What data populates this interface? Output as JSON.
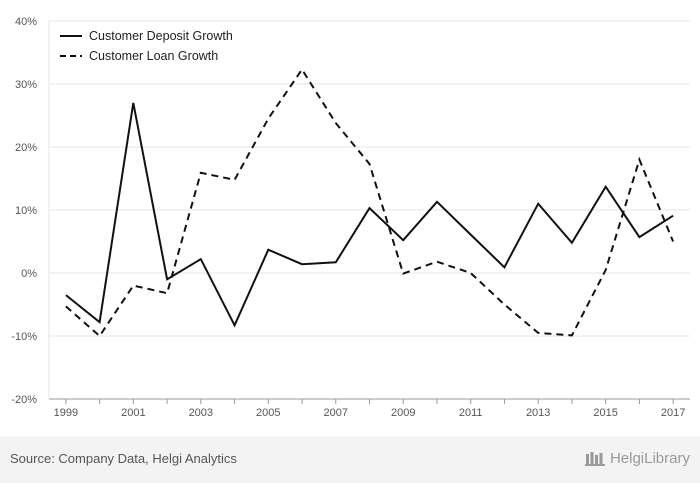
{
  "chart_data": {
    "type": "line",
    "title": "",
    "xlabel": "",
    "ylabel": "",
    "x": [
      1999,
      2000,
      2001,
      2002,
      2003,
      2004,
      2005,
      2006,
      2007,
      2008,
      2009,
      2010,
      2011,
      2012,
      2013,
      2014,
      2015,
      2016,
      2017
    ],
    "x_tick_labels": [
      "1999",
      "2001",
      "2003",
      "2005",
      "2007",
      "2009",
      "2011",
      "2013",
      "2015",
      "2017"
    ],
    "y_tick_labels": [
      "40%",
      "30%",
      "20%",
      "10%",
      "0%",
      "-10%",
      "-20%"
    ],
    "ylim": [
      -20,
      40
    ],
    "grid": true,
    "legend_position": "top-left",
    "series": [
      {
        "name": "Customer Deposit Growth",
        "style": "solid",
        "values": [
          -3.5,
          -7.8,
          27.0,
          -1.0,
          2.2,
          -8.3,
          3.7,
          1.4,
          1.7,
          10.3,
          5.2,
          11.3,
          6.1,
          0.9,
          11.0,
          4.8,
          13.7,
          5.7,
          9.1
        ]
      },
      {
        "name": "Customer Loan Growth",
        "style": "dashed",
        "values": [
          -5.3,
          -10.0,
          -2.0,
          -3.2,
          15.9,
          14.8,
          24.5,
          32.3,
          23.8,
          17.3,
          -0.1,
          1.8,
          0.0,
          -5.0,
          -9.5,
          -9.9,
          0.5,
          18.0,
          5.0
        ]
      }
    ]
  },
  "footer": {
    "source": "Source: Company Data, Helgi Analytics",
    "brand": "HelgiLibrary"
  },
  "colors": {
    "line": "#111111",
    "grid": "#e6e6e6",
    "footer_bg": "#f3f3f3"
  }
}
